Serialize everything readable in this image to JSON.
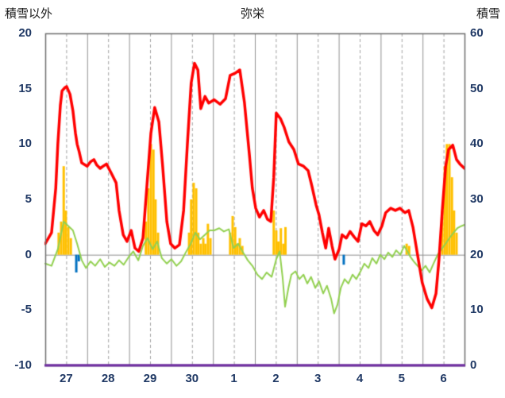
{
  "header": {
    "left_axis_title": "積雪以外",
    "title": "弥栄",
    "right_axis_title": "積雪"
  },
  "colors": {
    "tick_label": "#1F3864",
    "grid_solid": "#909090",
    "grid_dashed": "#A0A0A0",
    "zero_line": "#8C8C8C",
    "border": "#6E6E6E",
    "red_line": "#FF0000",
    "green_line": "#92D050",
    "orange_bar": "#FFC000",
    "blue_bar": "#0070C0",
    "purple_line": "#7030A0"
  },
  "chart_data": {
    "type": "line",
    "title": "弥栄",
    "left_axis": {
      "title": "積雪以外",
      "min": -10,
      "max": 20,
      "ticks": [
        20,
        15,
        10,
        5,
        0,
        -5,
        -10
      ]
    },
    "right_axis": {
      "title": "積雪",
      "min": 0,
      "max": 60,
      "ticks": [
        60,
        50,
        40,
        30,
        20,
        10,
        0
      ]
    },
    "x_axis": {
      "days": 10,
      "day_labels": [
        "27",
        "28",
        "29",
        "30",
        "1",
        "2",
        "3",
        "4",
        "5",
        "6"
      ]
    },
    "legend_position": "none",
    "grid": {
      "vertical_solid_at_day_boundaries": true,
      "vertical_dashed_at_noon": true,
      "horizontal_zero_line": true
    },
    "series": [
      {
        "name": "orange-bars",
        "type": "bar",
        "axis": "left",
        "color": "#FFC000",
        "points": [
          [
            0.32,
            2.0
          ],
          [
            0.38,
            3.0
          ],
          [
            0.44,
            8.0
          ],
          [
            0.49,
            4.0
          ],
          [
            0.55,
            2.5
          ],
          [
            0.61,
            1.5
          ],
          [
            2.4,
            3.0
          ],
          [
            2.46,
            6.0
          ],
          [
            2.52,
            10.0
          ],
          [
            2.58,
            9.5
          ],
          [
            2.63,
            5.0
          ],
          [
            2.69,
            2.0
          ],
          [
            3.43,
            2.0
          ],
          [
            3.48,
            5.0
          ],
          [
            3.54,
            6.5
          ],
          [
            3.6,
            6.0
          ],
          [
            3.65,
            2.0
          ],
          [
            3.71,
            1.0
          ],
          [
            3.77,
            1.5
          ],
          [
            3.82,
            1.0
          ],
          [
            3.88,
            2.8
          ],
          [
            3.94,
            1.5
          ],
          [
            4.41,
            2.0
          ],
          [
            4.47,
            3.5
          ],
          [
            4.53,
            2.5
          ],
          [
            4.58,
            1.0
          ],
          [
            4.64,
            1.5
          ],
          [
            4.7,
            0.8
          ],
          [
            5.45,
            4.0
          ],
          [
            5.51,
            2.2
          ],
          [
            5.56,
            1.2
          ],
          [
            5.62,
            2.4
          ],
          [
            5.68,
            1.0
          ],
          [
            5.73,
            2.5
          ],
          [
            8.62,
            1.0
          ],
          [
            8.68,
            0.8
          ],
          [
            9.47,
            4.0
          ],
          [
            9.53,
            8.0
          ],
          [
            9.58,
            10.0
          ],
          [
            9.64,
            10.0
          ],
          [
            9.7,
            7.0
          ],
          [
            9.75,
            4.0
          ],
          [
            9.81,
            2.0
          ]
        ]
      },
      {
        "name": "blue-bars",
        "type": "bar",
        "axis": "left",
        "color": "#0070C0",
        "points": [
          [
            0.74,
            -1.6
          ],
          [
            0.8,
            -0.6
          ],
          [
            7.12,
            -0.9
          ]
        ]
      },
      {
        "name": "green-line",
        "type": "line",
        "axis": "left",
        "color": "#92D050",
        "width": 2,
        "points": [
          [
            0.0,
            -0.8
          ],
          [
            0.15,
            -1.0
          ],
          [
            0.3,
            0.5
          ],
          [
            0.44,
            3.0
          ],
          [
            0.55,
            2.6
          ],
          [
            0.66,
            2.2
          ],
          [
            0.76,
            1.0
          ],
          [
            0.87,
            -0.5
          ],
          [
            0.97,
            -1.2
          ],
          [
            1.08,
            -0.6
          ],
          [
            1.19,
            -1.0
          ],
          [
            1.31,
            -0.4
          ],
          [
            1.42,
            -1.1
          ],
          [
            1.53,
            -0.7
          ],
          [
            1.65,
            -1.0
          ],
          [
            1.76,
            -0.5
          ],
          [
            1.87,
            -0.9
          ],
          [
            1.99,
            -0.2
          ],
          [
            2.1,
            0.3
          ],
          [
            2.22,
            -0.5
          ],
          [
            2.33,
            0.8
          ],
          [
            2.44,
            1.5
          ],
          [
            2.56,
            0.5
          ],
          [
            2.67,
            1.2
          ],
          [
            2.78,
            -0.3
          ],
          [
            2.9,
            -0.8
          ],
          [
            3.01,
            -0.4
          ],
          [
            3.13,
            -1.0
          ],
          [
            3.24,
            -0.6
          ],
          [
            3.35,
            0.2
          ],
          [
            3.47,
            1.0
          ],
          [
            3.58,
            2.0
          ],
          [
            3.69,
            1.4
          ],
          [
            3.81,
            1.8
          ],
          [
            3.92,
            2.2
          ],
          [
            4.03,
            2.2
          ],
          [
            4.15,
            2.4
          ],
          [
            4.26,
            2.1
          ],
          [
            4.38,
            2.3
          ],
          [
            4.49,
            0.6
          ],
          [
            4.6,
            1.0
          ],
          [
            4.72,
            0.2
          ],
          [
            4.83,
            -0.5
          ],
          [
            4.94,
            -1.0
          ],
          [
            5.06,
            -1.8
          ],
          [
            5.17,
            -2.2
          ],
          [
            5.28,
            -1.6
          ],
          [
            5.4,
            -2.0
          ],
          [
            5.51,
            -0.4
          ],
          [
            5.59,
            0.3
          ],
          [
            5.66,
            -2.0
          ],
          [
            5.72,
            -4.7
          ],
          [
            5.8,
            -3.0
          ],
          [
            5.87,
            -1.8
          ],
          [
            5.97,
            -1.5
          ],
          [
            6.06,
            -2.2
          ],
          [
            6.16,
            -1.8
          ],
          [
            6.25,
            -2.6
          ],
          [
            6.34,
            -2.0
          ],
          [
            6.44,
            -3.0
          ],
          [
            6.53,
            -2.4
          ],
          [
            6.63,
            -3.5
          ],
          [
            6.72,
            -2.8
          ],
          [
            6.82,
            -4.0
          ],
          [
            6.89,
            -5.3
          ],
          [
            6.97,
            -4.5
          ],
          [
            7.05,
            -3.0
          ],
          [
            7.14,
            -2.2
          ],
          [
            7.23,
            -2.6
          ],
          [
            7.33,
            -1.8
          ],
          [
            7.42,
            -2.2
          ],
          [
            7.52,
            -1.5
          ],
          [
            7.61,
            -0.8
          ],
          [
            7.71,
            -1.2
          ],
          [
            7.8,
            -0.3
          ],
          [
            7.9,
            -0.8
          ],
          [
            7.99,
            0.0
          ],
          [
            8.09,
            -0.4
          ],
          [
            8.18,
            0.2
          ],
          [
            8.28,
            -0.2
          ],
          [
            8.37,
            0.4
          ],
          [
            8.47,
            0.0
          ],
          [
            8.56,
            0.8
          ],
          [
            8.64,
            0.3
          ],
          [
            8.71,
            -0.2
          ],
          [
            8.79,
            -0.6
          ],
          [
            8.88,
            -1.0
          ],
          [
            8.98,
            -1.4
          ],
          [
            9.07,
            -1.0
          ],
          [
            9.17,
            -1.6
          ],
          [
            9.26,
            -0.8
          ],
          [
            9.36,
            0.0
          ],
          [
            9.45,
            0.5
          ],
          [
            9.55,
            1.0
          ],
          [
            9.64,
            1.5
          ],
          [
            9.74,
            2.0
          ],
          [
            9.83,
            2.4
          ],
          [
            9.93,
            2.6
          ],
          [
            10.0,
            2.7
          ]
        ]
      },
      {
        "name": "red-line",
        "type": "line",
        "axis": "left",
        "color": "#FF0000",
        "width": 3.5,
        "points": [
          [
            0.0,
            1.0
          ],
          [
            0.15,
            2.0
          ],
          [
            0.25,
            6.0
          ],
          [
            0.3,
            10.0
          ],
          [
            0.36,
            13.5
          ],
          [
            0.4,
            14.8
          ],
          [
            0.47,
            15.1
          ],
          [
            0.51,
            15.2
          ],
          [
            0.59,
            14.5
          ],
          [
            0.66,
            13.0
          ],
          [
            0.72,
            11.0
          ],
          [
            0.76,
            10.0
          ],
          [
            0.81,
            9.3
          ],
          [
            0.87,
            8.3
          ],
          [
            1.0,
            8.0
          ],
          [
            1.08,
            8.4
          ],
          [
            1.16,
            8.6
          ],
          [
            1.23,
            8.1
          ],
          [
            1.31,
            7.8
          ],
          [
            1.38,
            8.0
          ],
          [
            1.46,
            8.2
          ],
          [
            1.57,
            7.4
          ],
          [
            1.69,
            6.5
          ],
          [
            1.76,
            4.0
          ],
          [
            1.86,
            1.8
          ],
          [
            1.95,
            1.2
          ],
          [
            2.05,
            2.2
          ],
          [
            2.14,
            0.6
          ],
          [
            2.23,
            0.3
          ],
          [
            2.33,
            1.5
          ],
          [
            2.42,
            6.0
          ],
          [
            2.52,
            11.0
          ],
          [
            2.61,
            13.3
          ],
          [
            2.71,
            12.0
          ],
          [
            2.8,
            8.0
          ],
          [
            2.9,
            3.0
          ],
          [
            2.99,
            1.0
          ],
          [
            3.09,
            0.6
          ],
          [
            3.2,
            0.9
          ],
          [
            3.3,
            4.0
          ],
          [
            3.39,
            10.0
          ],
          [
            3.48,
            15.5
          ],
          [
            3.56,
            17.3
          ],
          [
            3.64,
            16.7
          ],
          [
            3.71,
            13.2
          ],
          [
            3.81,
            14.3
          ],
          [
            3.9,
            13.7
          ],
          [
            4.03,
            14.0
          ],
          [
            4.17,
            13.6
          ],
          [
            4.3,
            14.1
          ],
          [
            4.41,
            16.2
          ],
          [
            4.53,
            16.4
          ],
          [
            4.64,
            16.7
          ],
          [
            4.75,
            13.8
          ],
          [
            4.87,
            9.0
          ],
          [
            4.94,
            6.0
          ],
          [
            5.02,
            4.2
          ],
          [
            5.11,
            3.4
          ],
          [
            5.21,
            4.0
          ],
          [
            5.3,
            3.2
          ],
          [
            5.38,
            3.0
          ],
          [
            5.45,
            7.0
          ],
          [
            5.51,
            12.8
          ],
          [
            5.61,
            12.3
          ],
          [
            5.7,
            11.5
          ],
          [
            5.81,
            10.2
          ],
          [
            5.93,
            9.5
          ],
          [
            6.04,
            8.2
          ],
          [
            6.16,
            8.0
          ],
          [
            6.27,
            7.6
          ],
          [
            6.36,
            6.2
          ],
          [
            6.46,
            4.5
          ],
          [
            6.53,
            3.6
          ],
          [
            6.61,
            2.0
          ],
          [
            6.69,
            0.6
          ],
          [
            6.76,
            2.4
          ],
          [
            6.84,
            0.8
          ],
          [
            6.91,
            -0.4
          ],
          [
            7.01,
            0.5
          ],
          [
            7.08,
            1.8
          ],
          [
            7.18,
            1.5
          ],
          [
            7.27,
            2.1
          ],
          [
            7.37,
            1.6
          ],
          [
            7.46,
            1.2
          ],
          [
            7.55,
            2.8
          ],
          [
            7.65,
            2.6
          ],
          [
            7.74,
            3.0
          ],
          [
            7.84,
            2.2
          ],
          [
            7.93,
            1.8
          ],
          [
            8.03,
            2.6
          ],
          [
            8.12,
            3.8
          ],
          [
            8.24,
            4.2
          ],
          [
            8.35,
            4.0
          ],
          [
            8.46,
            4.2
          ],
          [
            8.58,
            3.8
          ],
          [
            8.67,
            4.0
          ],
          [
            8.77,
            2.5
          ],
          [
            8.88,
            0.0
          ],
          [
            8.99,
            -2.5
          ],
          [
            9.11,
            -4.0
          ],
          [
            9.22,
            -4.8
          ],
          [
            9.32,
            -3.5
          ],
          [
            9.39,
            -0.5
          ],
          [
            9.47,
            4.0
          ],
          [
            9.55,
            8.0
          ],
          [
            9.62,
            9.5
          ],
          [
            9.72,
            9.9
          ],
          [
            9.81,
            8.6
          ],
          [
            9.89,
            8.2
          ],
          [
            10.0,
            7.8
          ]
        ]
      },
      {
        "name": "purple-line",
        "type": "line",
        "axis": "right",
        "color": "#7030A0",
        "width": 3,
        "points": [
          [
            0.0,
            0
          ],
          [
            10.0,
            0
          ]
        ]
      }
    ]
  }
}
